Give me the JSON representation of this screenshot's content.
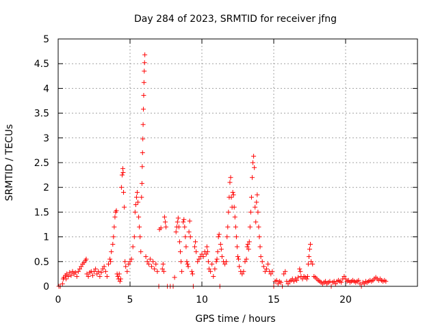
{
  "chart_data": {
    "type": "scatter",
    "title": "Day 284 of 2023, SRMTID for receiver jfng",
    "xlabel": "GPS time / hours",
    "ylabel": "SRMTID / TECUs",
    "xlim": [
      0,
      25
    ],
    "ylim": [
      0,
      5
    ],
    "xticks": [
      0,
      5,
      10,
      15,
      20
    ],
    "xtick_labels": [
      "0",
      "5",
      "10",
      "15",
      "20"
    ],
    "yticks": [
      0,
      0.5,
      1,
      1.5,
      2,
      2.5,
      3,
      3.5,
      4,
      4.5,
      5
    ],
    "ytick_labels": [
      "0",
      "0.5",
      "1",
      "1.5",
      "2",
      "2.5",
      "3",
      "3.5",
      "4",
      "4.5",
      "5"
    ],
    "grid": true,
    "marker": "+",
    "color": "#ff0000",
    "series": [
      {
        "name": "SRMTID",
        "points": [
          [
            0.05,
            0.0
          ],
          [
            0.15,
            0.0
          ],
          [
            0.3,
            0.05
          ],
          [
            0.35,
            0.15
          ],
          [
            0.4,
            0.18
          ],
          [
            0.5,
            0.22
          ],
          [
            0.55,
            0.15
          ],
          [
            0.6,
            0.25
          ],
          [
            0.7,
            0.2
          ],
          [
            0.8,
            0.28
          ],
          [
            0.9,
            0.22
          ],
          [
            1.0,
            0.3
          ],
          [
            1.1,
            0.25
          ],
          [
            1.2,
            0.28
          ],
          [
            1.3,
            0.2
          ],
          [
            1.4,
            0.3
          ],
          [
            1.5,
            0.35
          ],
          [
            1.6,
            0.4
          ],
          [
            1.7,
            0.45
          ],
          [
            1.8,
            0.48
          ],
          [
            1.9,
            0.52
          ],
          [
            1.95,
            0.55
          ],
          [
            2.0,
            0.25
          ],
          [
            2.1,
            0.2
          ],
          [
            2.2,
            0.28
          ],
          [
            2.3,
            0.3
          ],
          [
            2.4,
            0.22
          ],
          [
            2.5,
            0.3
          ],
          [
            2.6,
            0.35
          ],
          [
            2.7,
            0.25
          ],
          [
            2.8,
            0.3
          ],
          [
            2.9,
            0.2
          ],
          [
            3.0,
            0.28
          ],
          [
            3.1,
            0.35
          ],
          [
            3.2,
            0.4
          ],
          [
            3.3,
            0.3
          ],
          [
            3.4,
            0.2
          ],
          [
            3.5,
            0.45
          ],
          [
            3.6,
            0.55
          ],
          [
            3.65,
            0.5
          ],
          [
            3.7,
            0.7
          ],
          [
            3.8,
            0.85
          ],
          [
            3.85,
            1.0
          ],
          [
            3.9,
            1.2
          ],
          [
            3.95,
            1.4
          ],
          [
            4.0,
            1.5
          ],
          [
            4.05,
            1.53
          ],
          [
            4.1,
            0.25
          ],
          [
            4.15,
            0.2
          ],
          [
            4.2,
            0.15
          ],
          [
            4.25,
            0.25
          ],
          [
            4.3,
            0.1
          ],
          [
            4.35,
            0.15
          ],
          [
            4.4,
            2.0
          ],
          [
            4.45,
            2.25
          ],
          [
            4.5,
            2.38
          ],
          [
            4.52,
            2.3
          ],
          [
            4.55,
            1.9
          ],
          [
            4.6,
            1.6
          ],
          [
            4.65,
            0.5
          ],
          [
            4.7,
            0.4
          ],
          [
            4.8,
            0.3
          ],
          [
            4.9,
            0.45
          ],
          [
            5.0,
            0.5
          ],
          [
            5.1,
            0.55
          ],
          [
            5.2,
            0.8
          ],
          [
            5.3,
            1.0
          ],
          [
            5.35,
            1.5
          ],
          [
            5.4,
            1.65
          ],
          [
            5.45,
            1.8
          ],
          [
            5.5,
            1.9
          ],
          [
            5.55,
            1.7
          ],
          [
            5.6,
            1.4
          ],
          [
            5.65,
            1.2
          ],
          [
            5.7,
            1.0
          ],
          [
            5.75,
            0.7
          ],
          [
            5.8,
            1.8
          ],
          [
            5.83,
            2.08
          ],
          [
            5.85,
            2.42
          ],
          [
            5.87,
            2.7
          ],
          [
            5.89,
            2.98
          ],
          [
            5.91,
            3.27
          ],
          [
            5.93,
            3.58
          ],
          [
            5.95,
            3.86
          ],
          [
            5.97,
            4.12
          ],
          [
            5.99,
            4.35
          ],
          [
            6.01,
            4.52
          ],
          [
            6.03,
            4.68
          ],
          [
            6.1,
            0.6
          ],
          [
            6.2,
            0.5
          ],
          [
            6.3,
            0.45
          ],
          [
            6.4,
            0.55
          ],
          [
            6.5,
            0.4
          ],
          [
            6.6,
            0.5
          ],
          [
            6.7,
            0.35
          ],
          [
            6.8,
            0.45
          ],
          [
            6.9,
            0.3
          ],
          [
            7.0,
            0.0
          ],
          [
            7.05,
            1.15
          ],
          [
            7.15,
            1.18
          ],
          [
            7.25,
            0.35
          ],
          [
            7.3,
            0.45
          ],
          [
            7.35,
            0.3
          ],
          [
            7.4,
            1.4
          ],
          [
            7.45,
            1.3
          ],
          [
            7.5,
            1.2
          ],
          [
            7.6,
            0.0
          ],
          [
            7.8,
            0.0
          ],
          [
            8.0,
            0.0
          ],
          [
            8.1,
            0.18
          ],
          [
            8.2,
            1.1
          ],
          [
            8.25,
            1.2
          ],
          [
            8.3,
            1.3
          ],
          [
            8.35,
            1.38
          ],
          [
            8.4,
            1.2
          ],
          [
            8.45,
            0.9
          ],
          [
            8.5,
            0.7
          ],
          [
            8.55,
            0.5
          ],
          [
            8.6,
            0.3
          ],
          [
            8.7,
            1.3
          ],
          [
            8.75,
            1.35
          ],
          [
            8.8,
            1.2
          ],
          [
            8.85,
            1.0
          ],
          [
            8.9,
            0.8
          ],
          [
            8.95,
            0.5
          ],
          [
            9.0,
            0.45
          ],
          [
            9.05,
            0.4
          ],
          [
            9.1,
            1.1
          ],
          [
            9.15,
            1.32
          ],
          [
            9.2,
            1.0
          ],
          [
            9.3,
            0.3
          ],
          [
            9.35,
            0.25
          ],
          [
            9.4,
            0.0
          ],
          [
            9.5,
            0.8
          ],
          [
            9.55,
            0.9
          ],
          [
            9.6,
            0.7
          ],
          [
            9.7,
            0.5
          ],
          [
            9.8,
            0.55
          ],
          [
            9.9,
            0.6
          ],
          [
            10.0,
            0.65
          ],
          [
            10.1,
            0.6
          ],
          [
            10.2,
            0.7
          ],
          [
            10.3,
            0.65
          ],
          [
            10.35,
            0.8
          ],
          [
            10.4,
            0.7
          ],
          [
            10.45,
            0.5
          ],
          [
            10.5,
            0.35
          ],
          [
            10.6,
            0.3
          ],
          [
            10.7,
            0.45
          ],
          [
            10.8,
            0.2
          ],
          [
            10.9,
            0.35
          ],
          [
            11.0,
            0.5
          ],
          [
            11.05,
            0.55
          ],
          [
            11.1,
            0.7
          ],
          [
            11.15,
            1.0
          ],
          [
            11.2,
            1.05
          ],
          [
            11.25,
            0.0
          ],
          [
            11.3,
            0.85
          ],
          [
            11.35,
            0.75
          ],
          [
            11.4,
            0.6
          ],
          [
            11.5,
            0.5
          ],
          [
            11.6,
            0.45
          ],
          [
            11.7,
            0.5
          ],
          [
            11.75,
            1.0
          ],
          [
            11.8,
            1.2
          ],
          [
            11.85,
            1.5
          ],
          [
            11.9,
            1.8
          ],
          [
            11.95,
            2.1
          ],
          [
            12.0,
            2.2
          ],
          [
            12.05,
            1.8
          ],
          [
            12.1,
            1.6
          ],
          [
            12.15,
            1.9
          ],
          [
            12.2,
            1.85
          ],
          [
            12.25,
            1.6
          ],
          [
            12.3,
            1.4
          ],
          [
            12.35,
            1.2
          ],
          [
            12.4,
            1.0
          ],
          [
            12.45,
            0.8
          ],
          [
            12.5,
            0.6
          ],
          [
            12.55,
            0.55
          ],
          [
            12.6,
            0.4
          ],
          [
            12.7,
            0.3
          ],
          [
            12.8,
            0.25
          ],
          [
            12.9,
            0.3
          ],
          [
            13.0,
            0.5
          ],
          [
            13.1,
            0.55
          ],
          [
            13.15,
            0.8
          ],
          [
            13.2,
            0.85
          ],
          [
            13.25,
            0.75
          ],
          [
            13.3,
            0.9
          ],
          [
            13.35,
            1.2
          ],
          [
            13.4,
            1.5
          ],
          [
            13.45,
            1.8
          ],
          [
            13.5,
            2.2
          ],
          [
            13.55,
            2.5
          ],
          [
            13.6,
            2.63
          ],
          [
            13.65,
            2.4
          ],
          [
            13.7,
            1.6
          ],
          [
            13.75,
            1.3
          ],
          [
            13.8,
            1.7
          ],
          [
            13.85,
            1.85
          ],
          [
            13.9,
            1.5
          ],
          [
            13.95,
            1.2
          ],
          [
            14.0,
            1.0
          ],
          [
            14.05,
            0.8
          ],
          [
            14.1,
            0.6
          ],
          [
            14.2,
            0.5
          ],
          [
            14.3,
            0.4
          ],
          [
            14.4,
            0.3
          ],
          [
            14.5,
            0.35
          ],
          [
            14.6,
            0.45
          ],
          [
            14.7,
            0.3
          ],
          [
            14.8,
            0.25
          ],
          [
            14.9,
            0.3
          ],
          [
            15.0,
            0.0
          ],
          [
            15.1,
            0.1
          ],
          [
            15.2,
            0.12
          ],
          [
            15.3,
            0.05
          ],
          [
            15.4,
            0.1
          ],
          [
            15.5,
            0.08
          ],
          [
            15.6,
            0.0
          ],
          [
            15.7,
            0.25
          ],
          [
            15.8,
            0.3
          ],
          [
            15.9,
            0.1
          ],
          [
            16.0,
            0.05
          ],
          [
            16.1,
            0.1
          ],
          [
            16.2,
            0.12
          ],
          [
            16.3,
            0.15
          ],
          [
            16.4,
            0.1
          ],
          [
            16.5,
            0.15
          ],
          [
            16.6,
            0.12
          ],
          [
            16.7,
            0.18
          ],
          [
            16.8,
            0.35
          ],
          [
            16.85,
            0.3
          ],
          [
            16.9,
            0.2
          ],
          [
            17.0,
            0.15
          ],
          [
            17.1,
            0.2
          ],
          [
            17.2,
            0.18
          ],
          [
            17.3,
            0.15
          ],
          [
            17.35,
            0.2
          ],
          [
            17.4,
            0.45
          ],
          [
            17.45,
            0.6
          ],
          [
            17.5,
            0.75
          ],
          [
            17.55,
            0.85
          ],
          [
            17.6,
            0.5
          ],
          [
            17.7,
            0.45
          ],
          [
            17.8,
            0.2
          ],
          [
            17.9,
            0.18
          ],
          [
            18.0,
            0.15
          ],
          [
            18.1,
            0.12
          ],
          [
            18.2,
            0.1
          ],
          [
            18.3,
            0.08
          ],
          [
            18.4,
            0.05
          ],
          [
            18.5,
            0.08
          ],
          [
            18.6,
            0.1
          ],
          [
            18.7,
            0.05
          ],
          [
            18.8,
            0.08
          ],
          [
            18.9,
            0.1
          ],
          [
            19.0,
            0.0
          ],
          [
            19.1,
            0.08
          ],
          [
            19.2,
            0.1
          ],
          [
            19.3,
            0.05
          ],
          [
            19.4,
            0.1
          ],
          [
            19.5,
            0.12
          ],
          [
            19.6,
            0.1
          ],
          [
            19.7,
            0.08
          ],
          [
            19.8,
            0.15
          ],
          [
            19.9,
            0.2
          ],
          [
            20.0,
            0.15
          ],
          [
            20.1,
            0.1
          ],
          [
            20.2,
            0.12
          ],
          [
            20.3,
            0.08
          ],
          [
            20.4,
            0.1
          ],
          [
            20.5,
            0.12
          ],
          [
            20.6,
            0.1
          ],
          [
            20.7,
            0.08
          ],
          [
            20.8,
            0.1
          ],
          [
            20.9,
            0.12
          ],
          [
            21.0,
            0.05
          ],
          [
            21.1,
            0.0
          ],
          [
            21.2,
            0.08
          ],
          [
            21.3,
            0.05
          ],
          [
            21.4,
            0.1
          ],
          [
            21.5,
            0.08
          ],
          [
            21.6,
            0.1
          ],
          [
            21.7,
            0.12
          ],
          [
            21.8,
            0.1
          ],
          [
            21.9,
            0.12
          ],
          [
            22.0,
            0.15
          ],
          [
            22.1,
            0.18
          ],
          [
            22.2,
            0.15
          ],
          [
            22.3,
            0.12
          ],
          [
            22.4,
            0.15
          ],
          [
            22.5,
            0.12
          ],
          [
            22.6,
            0.1
          ],
          [
            22.7,
            0.12
          ],
          [
            22.8,
            0.1
          ]
        ]
      }
    ]
  }
}
